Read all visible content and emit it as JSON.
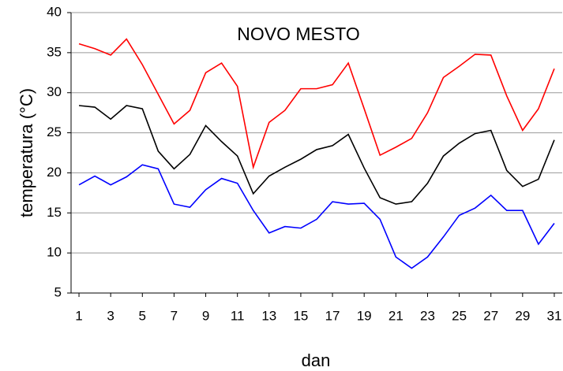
{
  "chart_data": {
    "type": "line",
    "title": "NOVO MESTO",
    "xlabel": "dan",
    "ylabel": "temperatura (°C)",
    "x": [
      1,
      2,
      3,
      4,
      5,
      6,
      7,
      8,
      9,
      10,
      11,
      12,
      13,
      14,
      15,
      16,
      17,
      18,
      19,
      20,
      21,
      22,
      23,
      24,
      25,
      26,
      27,
      28,
      29,
      30,
      31
    ],
    "series": [
      {
        "color": "#ff0000",
        "values": [
          36.1,
          35.5,
          34.7,
          36.7,
          33.5,
          29.8,
          26.1,
          27.8,
          32.5,
          33.7,
          30.8,
          20.7,
          26.3,
          27.8,
          30.5,
          30.5,
          31,
          33.7,
          28,
          22.2,
          23.2,
          24.3,
          27.5,
          31.9,
          33.3,
          34.8,
          34.7,
          29.6,
          25.3,
          28,
          33
        ]
      },
      {
        "color": "#000000",
        "values": [
          28.4,
          28.2,
          26.7,
          28.4,
          28,
          22.7,
          20.5,
          22.3,
          25.9,
          23.9,
          22.1,
          17.4,
          19.6,
          20.7,
          21.7,
          22.9,
          23.4,
          24.8,
          20.6,
          16.9,
          16.1,
          16.4,
          18.7,
          22.1,
          23.7,
          24.9,
          25.3,
          20.3,
          18.3,
          19.2,
          24.1
        ]
      },
      {
        "color": "#0000ff",
        "values": [
          18.5,
          19.6,
          18.5,
          19.5,
          21,
          20.5,
          16.1,
          15.7,
          17.9,
          19.3,
          18.7,
          15.3,
          12.5,
          13.3,
          13.1,
          14.2,
          16.4,
          16.1,
          16.2,
          14.2,
          9.5,
          8.1,
          9.5,
          12,
          14.7,
          15.6,
          17.2,
          15.3,
          15.3,
          11.1,
          13.7
        ]
      }
    ],
    "xlim": [
      0.5,
      31.5
    ],
    "xticks": [
      1,
      3,
      5,
      7,
      9,
      11,
      13,
      15,
      17,
      19,
      21,
      23,
      25,
      27,
      29,
      31
    ],
    "ylim": [
      5,
      40
    ],
    "yticks": [
      5,
      10,
      15,
      20,
      25,
      30,
      35,
      40
    ],
    "grid": true
  }
}
